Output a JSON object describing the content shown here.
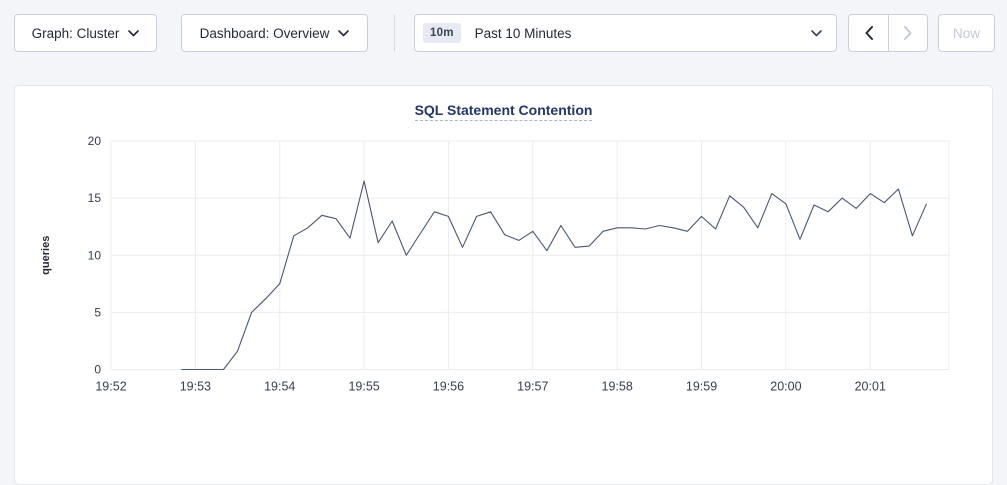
{
  "toolbar": {
    "graph_dropdown": {
      "label": "Graph: Cluster"
    },
    "dashboard_dropdown": {
      "label": "Dashboard: Overview"
    },
    "time_selector": {
      "badge": "10m",
      "label": "Past 10 Minutes"
    },
    "prev_button": {
      "enabled": true
    },
    "next_button": {
      "enabled": false
    },
    "now_button": {
      "label": "Now",
      "enabled": false
    }
  },
  "chart_data": {
    "type": "line",
    "title": "SQL Statement Contention",
    "xlabel": "",
    "ylabel": "queries",
    "ylim": [
      0,
      20
    ],
    "yticks": [
      0,
      5,
      10,
      15,
      20
    ],
    "x_tick_labels": [
      "19:52",
      "19:53",
      "19:54",
      "19:55",
      "19:56",
      "19:57",
      "19:58",
      "19:59",
      "20:00",
      "20:01"
    ],
    "x_base_time": "19:52:00",
    "x_range_seconds": [
      0,
      596
    ],
    "grid": true,
    "legend": "none",
    "series": [
      {
        "name": "queries",
        "color": "#475872",
        "times": [
          "19:52:50",
          "19:53:00",
          "19:53:10",
          "19:53:20",
          "19:53:30",
          "19:53:40",
          "19:53:50",
          "19:54:00",
          "19:54:10",
          "19:54:20",
          "19:54:30",
          "19:54:40",
          "19:54:50",
          "19:55:00",
          "19:55:10",
          "19:55:20",
          "19:55:30",
          "19:55:40",
          "19:55:50",
          "19:56:00",
          "19:56:10",
          "19:56:20",
          "19:56:30",
          "19:56:40",
          "19:56:50",
          "19:57:00",
          "19:57:10",
          "19:57:20",
          "19:57:30",
          "19:57:40",
          "19:57:50",
          "19:58:00",
          "19:58:10",
          "19:58:20",
          "19:58:30",
          "19:58:40",
          "19:58:50",
          "19:59:00",
          "19:59:10",
          "19:59:20",
          "19:59:30",
          "19:59:40",
          "19:59:50",
          "20:00:00",
          "20:00:10",
          "20:00:20",
          "20:00:30",
          "20:00:40",
          "20:00:50",
          "20:01:00",
          "20:01:10",
          "20:01:20",
          "20:01:30",
          "20:01:40"
        ],
        "values": [
          0,
          0,
          0,
          0,
          1.6,
          5,
          6.2,
          7.5,
          11.7,
          12.4,
          13.5,
          13.2,
          11.5,
          16.5,
          11.1,
          13,
          10,
          11.9,
          13.8,
          13.4,
          10.7,
          13.4,
          13.8,
          11.8,
          11.3,
          12.1,
          10.4,
          12.6,
          10.7,
          10.8,
          12.1,
          12.4,
          12.4,
          12.3,
          12.6,
          12.4,
          12.1,
          13.4,
          12.3,
          15.2,
          14.2,
          12.4,
          15.4,
          14.5,
          11.4,
          14.4,
          13.8,
          15,
          14.1,
          15.4,
          14.6,
          15.8,
          11.7,
          14.5
        ]
      }
    ]
  },
  "colors": {
    "page_background": "#f3f5f9",
    "card_background": "#ffffff",
    "line": "#475872",
    "gridline": "#ececef",
    "title": "#22356e",
    "axis_text": "#35404f",
    "disabled": "#c3cad7"
  }
}
